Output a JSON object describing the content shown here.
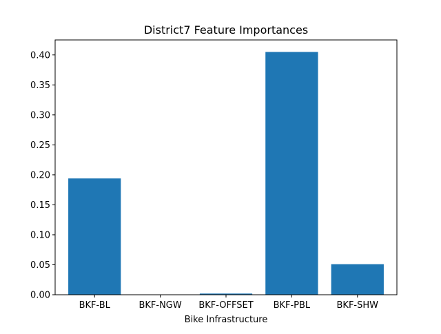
{
  "chart_data": {
    "type": "bar",
    "title": "District7 Feature Importances",
    "xlabel": "Bike Infrastructure",
    "ylabel": "",
    "categories": [
      "BKF-BL",
      "BKF-NGW",
      "BKF-OFFSET",
      "BKF-PBL",
      "BKF-SHW"
    ],
    "values": [
      0.194,
      0.0,
      0.002,
      0.405,
      0.051
    ],
    "ylim": [
      0,
      0.425
    ],
    "yticks": [
      0.0,
      0.05,
      0.1,
      0.15,
      0.2,
      0.25,
      0.3,
      0.35,
      0.4
    ],
    "ytick_labels": [
      "0.00",
      "0.05",
      "0.10",
      "0.15",
      "0.20",
      "0.25",
      "0.30",
      "0.35",
      "0.40"
    ],
    "bar_color": "#1f77b4",
    "grid": false,
    "legend": "none"
  }
}
